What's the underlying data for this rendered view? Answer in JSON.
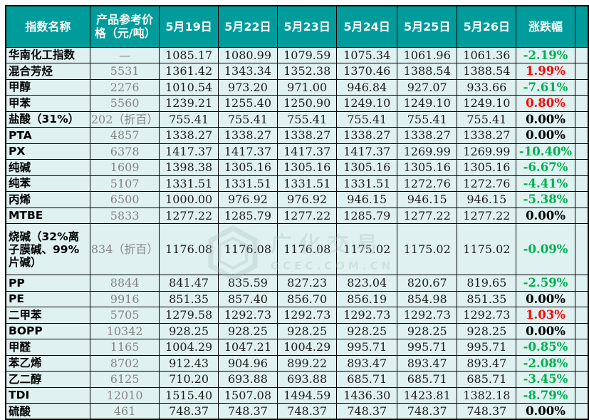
{
  "table": {
    "columns": [
      "指数名称",
      "产品参考价格（元/吨）",
      "5月19日",
      "5月22日",
      "5月23日",
      "5月24日",
      "5月25日",
      "5月26日",
      "涨跌幅"
    ],
    "rows": [
      {
        "name": "华南化工指数",
        "price": "—",
        "values": [
          "1085.17",
          "1080.99",
          "1079.59",
          "1075.34",
          "1061.96",
          "1061.36"
        ],
        "change": "-2.19%",
        "trend": "down"
      },
      {
        "name": "混合芳烃",
        "price": "5531",
        "values": [
          "1361.42",
          "1343.34",
          "1352.38",
          "1370.46",
          "1388.54",
          "1388.54"
        ],
        "change": "1.99%",
        "trend": "up"
      },
      {
        "name": "甲醇",
        "price": "2276",
        "values": [
          "1010.54",
          "973.20",
          "971.00",
          "946.84",
          "927.07",
          "933.66"
        ],
        "change": "-7.61%",
        "trend": "down"
      },
      {
        "name": "甲苯",
        "price": "5560",
        "values": [
          "1239.21",
          "1255.40",
          "1250.90",
          "1249.10",
          "1249.10",
          "1249.10"
        ],
        "change": "0.80%",
        "trend": "up"
      },
      {
        "name": "盐酸（31%）",
        "price": "202（折百）",
        "price_clip": true,
        "values": [
          "755.41",
          "755.41",
          "755.41",
          "755.41",
          "755.41",
          "755.41"
        ],
        "change": "0.00%",
        "trend": "flat"
      },
      {
        "name": "PTA",
        "price": "4857",
        "values": [
          "1338.27",
          "1338.27",
          "1338.27",
          "1338.27",
          "1338.27",
          "1338.27"
        ],
        "change": "0.00%",
        "trend": "flat"
      },
      {
        "name": "PX",
        "price": "6378",
        "values": [
          "1417.37",
          "1417.37",
          "1417.37",
          "1417.37",
          "1269.99",
          "1269.99"
        ],
        "change": "-10.40%",
        "trend": "down"
      },
      {
        "name": "纯碱",
        "price": "1609",
        "values": [
          "1398.38",
          "1305.16",
          "1305.16",
          "1305.16",
          "1305.16",
          "1305.16"
        ],
        "change": "-6.67%",
        "trend": "down"
      },
      {
        "name": "纯苯",
        "price": "5107",
        "values": [
          "1331.51",
          "1331.51",
          "1331.51",
          "1331.51",
          "1272.76",
          "1272.76"
        ],
        "change": "-4.41%",
        "trend": "down"
      },
      {
        "name": "丙烯",
        "price": "6500",
        "values": [
          "1000.00",
          "976.92",
          "976.92",
          "946.15",
          "946.15",
          "946.15"
        ],
        "change": "-5.38%",
        "trend": "down"
      },
      {
        "name": "MTBE",
        "price": "5833",
        "values": [
          "1277.22",
          "1285.79",
          "1277.22",
          "1285.79",
          "1277.22",
          "1277.22"
        ],
        "change": "0.00%",
        "trend": "flat"
      },
      {
        "name": "烧碱（32%离子膜碱、99%片碱）",
        "price": "834（折百）",
        "price_clip": true,
        "tall": true,
        "values": [
          "1176.08",
          "1176.08",
          "1176.08",
          "1175.02",
          "1175.02",
          "1175.02"
        ],
        "change": "-0.09%",
        "trend": "down"
      },
      {
        "name": "PP",
        "price": "8844",
        "values": [
          "841.47",
          "835.59",
          "827.23",
          "823.04",
          "820.67",
          "819.65"
        ],
        "change": "-2.59%",
        "trend": "down"
      },
      {
        "name": "PE",
        "price": "9916",
        "values": [
          "851.35",
          "857.40",
          "856.70",
          "856.19",
          "854.98",
          "851.35"
        ],
        "change": "0.00%",
        "trend": "flat"
      },
      {
        "name": "二甲苯",
        "price": "5705",
        "values": [
          "1279.58",
          "1292.73",
          "1292.73",
          "1292.73",
          "1292.73",
          "1292.73"
        ],
        "change": "1.03%",
        "trend": "up"
      },
      {
        "name": "BOPP",
        "price": "10342",
        "values": [
          "928.25",
          "928.25",
          "928.25",
          "928.25",
          "928.25",
          "928.25"
        ],
        "change": "0.00%",
        "trend": "flat"
      },
      {
        "name": "甲醛",
        "price": "1165",
        "values": [
          "1004.29",
          "1047.21",
          "1004.29",
          "995.71",
          "995.71",
          "995.71"
        ],
        "change": "-0.85%",
        "trend": "down"
      },
      {
        "name": "苯乙烯",
        "price": "8702",
        "values": [
          "912.43",
          "904.96",
          "899.22",
          "893.47",
          "893.47",
          "893.47"
        ],
        "change": "-2.08%",
        "trend": "down"
      },
      {
        "name": "乙二醇",
        "price": "6125",
        "values": [
          "710.20",
          "693.88",
          "693.88",
          "685.71",
          "685.71",
          "685.71"
        ],
        "change": "-3.45%",
        "trend": "down"
      },
      {
        "name": "TDI",
        "price": "12010",
        "values": [
          "1515.40",
          "1507.08",
          "1494.59",
          "1436.30",
          "1423.81",
          "1382.18"
        ],
        "change": "-8.79%",
        "trend": "down"
      },
      {
        "name": "硫酸",
        "price": "461",
        "values": [
          "748.37",
          "748.37",
          "748.37",
          "748.37",
          "748.37",
          "748.37"
        ],
        "change": "0.00%",
        "trend": "flat"
      }
    ]
  },
  "watermark": {
    "text": "广化交易",
    "subtext": "GCEC.COM.CN"
  },
  "colors": {
    "header_bg": "#009B9B",
    "header_text": "#FFFFFF",
    "row_bg": "#DFF1F1",
    "border": "#000000",
    "up_red": "#FE0000",
    "down_green": "#00B050",
    "flat_black": "#000000",
    "price_gray": "#848484"
  }
}
